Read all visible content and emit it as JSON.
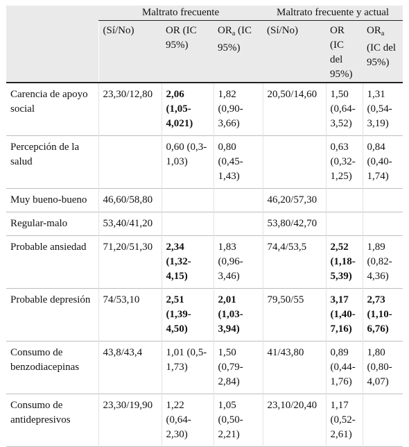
{
  "header": {
    "group1": "Maltrato frecuente",
    "group2": "Maltrato frecuente y actual",
    "col1": "(Sí/No)",
    "col2": "OR (IC 95%)",
    "col3_pre": "OR",
    "col3_sub": "a",
    "col3_post": " (IC 95%)",
    "col4": "(Sí/No)",
    "col5": "OR (IC del 95%)",
    "col6_pre": "OR",
    "col6_sub": "a",
    "col6_post": " (IC del 95%)"
  },
  "rows": [
    {
      "label": "Carencia de apoyo social",
      "c1": "23,30/12,80",
      "c2": "2,06 (1,05-4,021)",
      "c3": "1,82 (0,90-3,66)",
      "c4": "20,50/14,60",
      "c5": "1,50 (0,64-3,52)",
      "c6": "1,31 (0,54-3,19)"
    },
    {
      "label": "Percepción de la salud",
      "c1": "",
      "c2": "0,60 (0,3-1,03)",
      "c3": "0,80 (0,45-1,43)",
      "c4": "",
      "c5": "0,63 (0,32-1,25)",
      "c6": "0,84 (0,40-1,74)"
    },
    {
      "label": "Muy bueno-bueno",
      "c1": "46,60/58,80",
      "c2": "",
      "c3": "",
      "c4": "46,20/57,30",
      "c5": "",
      "c6": ""
    },
    {
      "label": "Regular-malo",
      "c1": "53,40/41,20",
      "c2": "",
      "c3": "",
      "c4": "53,80/42,70",
      "c5": "",
      "c6": ""
    },
    {
      "label": "Probable ansiedad",
      "c1": "71,20/51,30",
      "c2": "2,34 (1,32-4,15)",
      "c3": "1,83 (0,96-3,46)",
      "c4": "74,4/53,5",
      "c5": "2,52 (1,18-5,39)",
      "c6": "1,89 (0,82-4,36)"
    },
    {
      "label": "Probable depresión",
      "c1": "74/53,10",
      "c2": "2,51 (1,39-4,50)",
      "c3": "2,01 (1,03-3,94)",
      "c4": "79,50/55",
      "c5": "3,17 (1,40-7,16)",
      "c6": "2,73 (1,10-6,76)"
    },
    {
      "label": "Consumo de benzodiacepinas",
      "c1": "43,8/43,4",
      "c2": "1,01 (0,5-1,73)",
      "c3": "1,50 (0,79-2,84)",
      "c4": "41/43,80",
      "c5": "0,89 (0,44-1,76)",
      "c6": "1,80 (0,80-4,07)"
    },
    {
      "label": "Consumo de antidepresivos",
      "c1": "23,30/19,90",
      "c2": "1,22 (0,64-2,30)",
      "c3": "1,05 (0,50-2,21)",
      "c4": "23,10/20,40",
      "c5": "1,17 (0,52-2,61)",
      "c6": ""
    }
  ]
}
